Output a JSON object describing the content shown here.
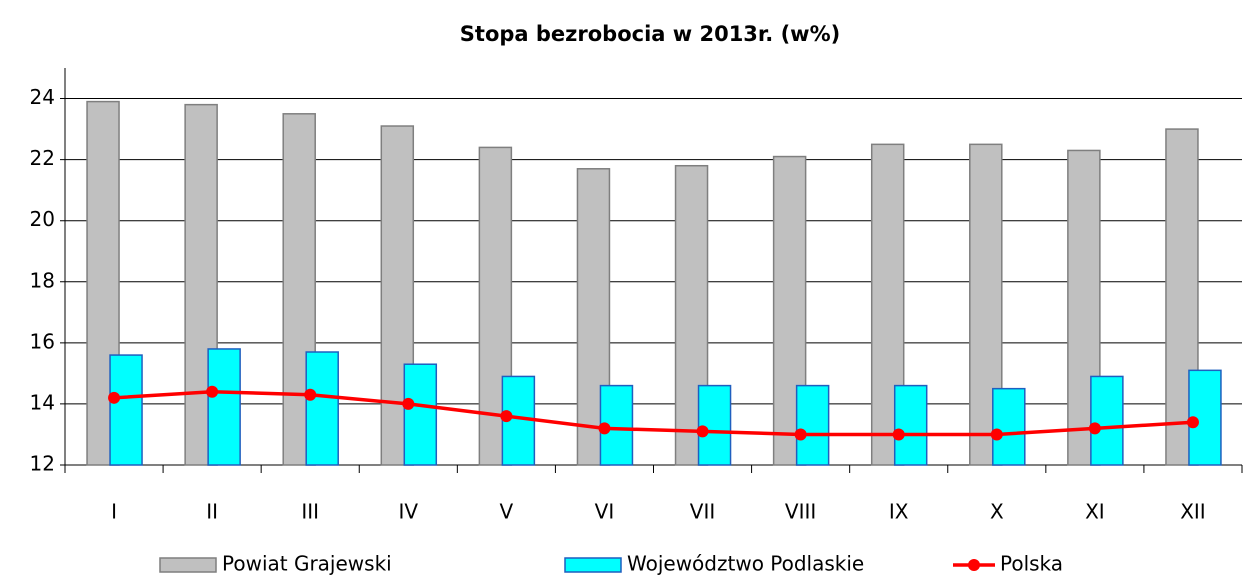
{
  "chart_data": {
    "type": "bar_line",
    "title": "Stopa bezrobocia w 2013r. (w%)",
    "categories": [
      "I",
      "II",
      "III",
      "IV",
      "V",
      "VI",
      "VII",
      "VIII",
      "IX",
      "X",
      "XI",
      "XII"
    ],
    "series": [
      {
        "name": "Powiat Grajewski",
        "type": "bar",
        "color": "#c0c0c0",
        "values": [
          23.9,
          23.8,
          23.5,
          23.1,
          22.4,
          21.7,
          21.8,
          22.1,
          22.5,
          22.5,
          22.3,
          23.0
        ]
      },
      {
        "name": "Województwo Podlaskie",
        "type": "bar",
        "color": "#00ffff",
        "values": [
          15.6,
          15.8,
          15.7,
          15.3,
          14.9,
          14.6,
          14.6,
          14.6,
          14.6,
          14.5,
          14.9,
          15.1
        ]
      },
      {
        "name": "Polska",
        "type": "line",
        "color": "#ff0000",
        "values": [
          14.2,
          14.4,
          14.3,
          14.0,
          13.6,
          13.2,
          13.1,
          13.0,
          13.0,
          13.0,
          13.2,
          13.4
        ]
      }
    ],
    "ylim": [
      12,
      25
    ],
    "yticks": [
      12,
      14,
      16,
      18,
      20,
      22,
      24
    ],
    "grid": true,
    "legend": "bottom"
  }
}
